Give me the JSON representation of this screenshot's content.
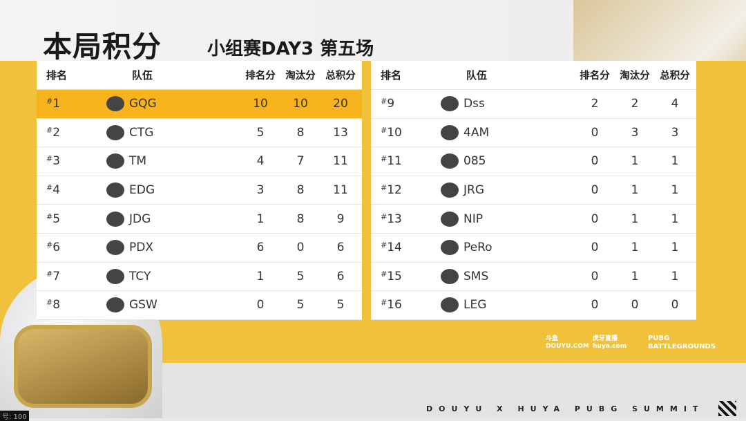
{
  "header": {
    "title": "本局积分",
    "subtitle": "小组赛DAY3  第五场"
  },
  "columns": {
    "rank": "排名",
    "team": "队伍",
    "place_pts": "排名分",
    "kill_pts": "淘汰分",
    "total": "总积分"
  },
  "left": [
    {
      "rank": "1",
      "team": "GQG",
      "place": "10",
      "kill": "10",
      "total": "20",
      "highlight": true
    },
    {
      "rank": "2",
      "team": "CTG",
      "place": "5",
      "kill": "8",
      "total": "13"
    },
    {
      "rank": "3",
      "team": "TM",
      "place": "4",
      "kill": "7",
      "total": "11"
    },
    {
      "rank": "4",
      "team": "EDG",
      "place": "3",
      "kill": "8",
      "total": "11"
    },
    {
      "rank": "5",
      "team": "JDG",
      "place": "1",
      "kill": "8",
      "total": "9"
    },
    {
      "rank": "6",
      "team": "PDX",
      "place": "6",
      "kill": "0",
      "total": "6"
    },
    {
      "rank": "7",
      "team": "TCY",
      "place": "1",
      "kill": "5",
      "total": "6"
    },
    {
      "rank": "8",
      "team": "GSW",
      "place": "0",
      "kill": "5",
      "total": "5"
    }
  ],
  "right": [
    {
      "rank": "9",
      "team": "Dss",
      "place": "2",
      "kill": "2",
      "total": "4"
    },
    {
      "rank": "10",
      "team": "4AM",
      "place": "0",
      "kill": "3",
      "total": "3"
    },
    {
      "rank": "11",
      "team": "085",
      "place": "0",
      "kill": "1",
      "total": "1"
    },
    {
      "rank": "12",
      "team": "JRG",
      "place": "0",
      "kill": "1",
      "total": "1"
    },
    {
      "rank": "13",
      "team": "NIP",
      "place": "0",
      "kill": "1",
      "total": "1"
    },
    {
      "rank": "14",
      "team": "PeRo",
      "place": "0",
      "kill": "1",
      "total": "1"
    },
    {
      "rank": "15",
      "team": "SMS",
      "place": "0",
      "kill": "1",
      "total": "1"
    },
    {
      "rank": "16",
      "team": "LEG",
      "place": "0",
      "kill": "0",
      "total": "0"
    }
  ],
  "sponsors": [
    "斗鱼 DOUYU.COM",
    "虎牙直播 huya.com",
    "PUBG BATTLEGROUNDS"
  ],
  "footer": "DOUYU X HUYA PUBG SUMMIT",
  "corner_text": "号: 100",
  "colors": {
    "band": "#f0c23c",
    "highlight": "#f7b31b"
  }
}
